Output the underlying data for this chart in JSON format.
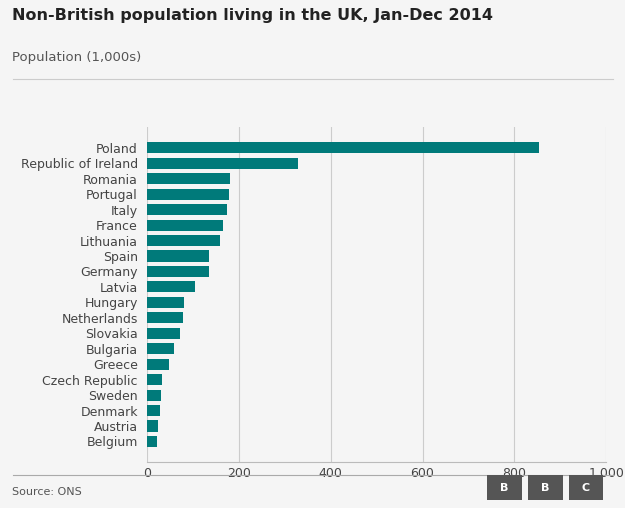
{
  "title": "Non-British population living in the UK, Jan-Dec 2014",
  "subtitle": "Population (1,000s)",
  "source": "Source: ONS",
  "bar_color": "#007a7a",
  "background_color": "#f5f5f5",
  "xlim": [
    0,
    1000
  ],
  "xticks": [
    0,
    200,
    400,
    600,
    800,
    1000
  ],
  "xtick_labels": [
    "0",
    "200",
    "400",
    "600",
    "800",
    "1,000"
  ],
  "categories": [
    "Belgium",
    "Austria",
    "Denmark",
    "Sweden",
    "Czech Republic",
    "Greece",
    "Bulgaria",
    "Slovakia",
    "Netherlands",
    "Hungary",
    "Latvia",
    "Germany",
    "Spain",
    "Lithuania",
    "France",
    "Italy",
    "Portugal",
    "Romania",
    "Republic of Ireland",
    "Poland"
  ],
  "values": [
    22,
    25,
    28,
    30,
    32,
    48,
    58,
    72,
    78,
    80,
    105,
    135,
    135,
    160,
    165,
    175,
    178,
    180,
    330,
    853
  ]
}
